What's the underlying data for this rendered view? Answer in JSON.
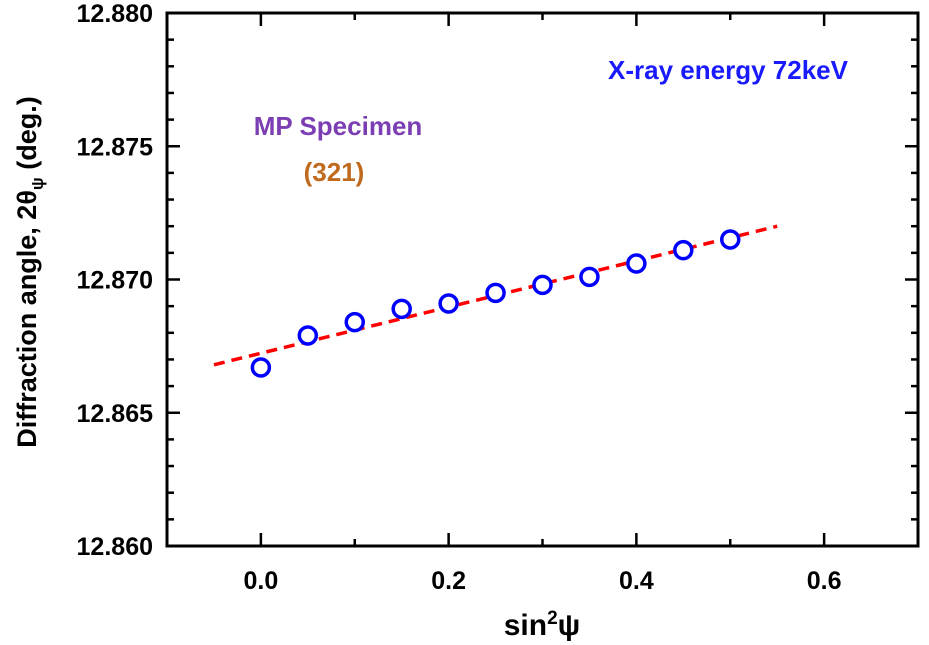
{
  "chart_data": {
    "type": "scatter",
    "title": "",
    "xlabel_main": "sin",
    "xlabel_sup": "2",
    "xlabel_end": "ψ",
    "ylabel_main": "Diffraction angle, 2θ",
    "ylabel_sub": "ψ",
    "ylabel_end": " (deg.)",
    "xlim": [
      -0.1,
      0.7
    ],
    "ylim": [
      12.86,
      12.88
    ],
    "x_ticks": [
      0.0,
      0.2,
      0.4,
      0.6
    ],
    "x_tick_labels": [
      "0.0",
      "0.2",
      "0.4",
      "0.6"
    ],
    "x_minor_step": 0.1,
    "y_ticks": [
      12.86,
      12.865,
      12.87,
      12.875,
      12.88
    ],
    "y_tick_labels": [
      "12.860",
      "12.865",
      "12.870",
      "12.875",
      "12.880"
    ],
    "y_minor_step": 0.001,
    "series": [
      {
        "name": "MP Specimen (321)",
        "marker": "open-circle",
        "color": "#0000ff",
        "x": [
          0.0,
          0.05,
          0.1,
          0.15,
          0.2,
          0.25,
          0.3,
          0.35,
          0.4,
          0.45,
          0.5
        ],
        "y": [
          12.8667,
          12.8679,
          12.8684,
          12.8689,
          12.8691,
          12.8695,
          12.8698,
          12.8701,
          12.8706,
          12.8711,
          12.8715
        ]
      }
    ],
    "fit_line": {
      "style": "dashed",
      "color": "#ff0000",
      "x": [
        -0.05,
        0.55
      ],
      "y": [
        12.8668,
        12.872
      ]
    },
    "annotations": {
      "energy": {
        "text": "X-ray energy 72keV",
        "color": "#1a1aff"
      },
      "specimen": {
        "text": "MP Specimen",
        "color": "#7b3fb3"
      },
      "plane": {
        "text": "(321)",
        "color": "#c06a1e"
      }
    }
  }
}
